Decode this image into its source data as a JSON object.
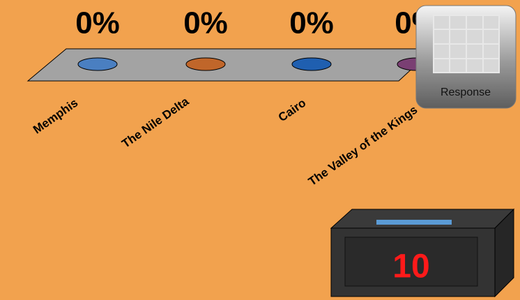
{
  "chart_data": {
    "type": "bar",
    "categories": [
      "Memphis",
      "The Nile Delta",
      "Cairo",
      "The Valley of the Kings"
    ],
    "values": [
      0,
      0,
      0,
      0
    ],
    "value_labels": [
      "0%",
      "0%",
      "0%",
      "0%"
    ],
    "colors": [
      "#4a7fc1",
      "#c0662a",
      "#1f5fb0",
      "#7a3f73"
    ]
  },
  "response_button": {
    "label": "Response"
  },
  "countdown": {
    "value": "10"
  }
}
